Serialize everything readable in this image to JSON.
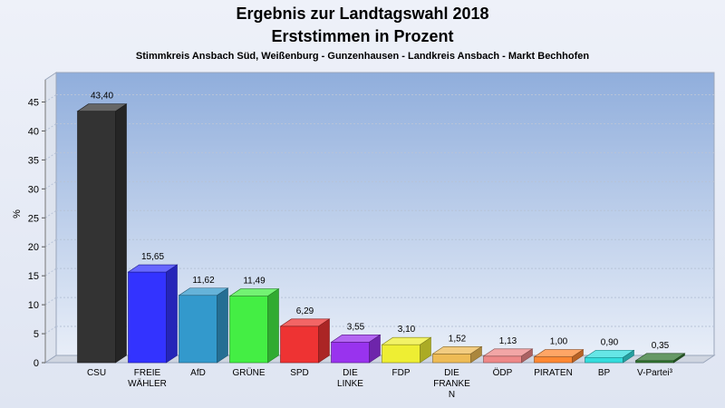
{
  "chart_data": {
    "type": "bar",
    "title": "Ergebnis zur Landtagswahl 2018",
    "title2": "Erststimmen in Prozent",
    "subtitle": "Stimmkreis Ansbach Süd, Weißenburg - Gunzenhausen - Landkreis Ansbach - Markt Bechhofen",
    "ylabel": "%",
    "ylim": [
      0,
      45
    ],
    "yticks": [
      0,
      5,
      10,
      15,
      20,
      25,
      30,
      35,
      40,
      45
    ],
    "grid": true,
    "categories": [
      [
        "CSU"
      ],
      [
        "FREIE",
        "WÄHLER"
      ],
      [
        "AfD"
      ],
      [
        "GRÜNE"
      ],
      [
        "SPD"
      ],
      [
        "DIE",
        "LINKE"
      ],
      [
        "FDP"
      ],
      [
        "DIE",
        "FRANKE",
        "N"
      ],
      [
        "ÖDP"
      ],
      [
        "PIRATEN"
      ],
      [
        "BP"
      ],
      [
        "V-Partei³"
      ]
    ],
    "values": [
      43.4,
      15.65,
      11.62,
      11.49,
      6.29,
      3.55,
      3.1,
      1.52,
      1.13,
      1.0,
      0.9,
      0.35
    ],
    "value_labels": [
      "43,40",
      "15,65",
      "11,62",
      "11,49",
      "6,29",
      "3,55",
      "3,10",
      "1,52",
      "1,13",
      "1,00",
      "0,90",
      "0,35"
    ],
    "colors": [
      "#333333",
      "#3333ff",
      "#3399cc",
      "#44ee44",
      "#ee3333",
      "#9933ee",
      "#eeee33",
      "#eebb55",
      "#ee8888",
      "#ff8833",
      "#33dddd",
      "#337733"
    ]
  }
}
